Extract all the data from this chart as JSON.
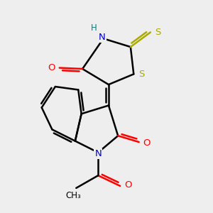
{
  "bg_color": "#eeeeee",
  "atom_colors": {
    "C": "#000000",
    "N": "#0000cc",
    "O": "#ff0000",
    "S": "#aaaa00",
    "H": "#008080"
  },
  "figsize": [
    3.0,
    3.0
  ],
  "dpi": 100
}
